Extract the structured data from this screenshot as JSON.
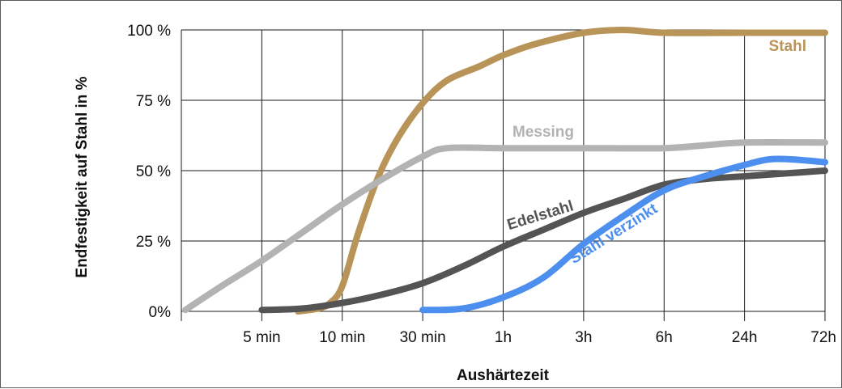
{
  "chart_data": {
    "type": "line",
    "xlabel": "Aushärtezeit",
    "ylabel": "Endfestigkeit auf Stahl in %",
    "ylim": [
      0,
      100
    ],
    "grid": true,
    "categories": [
      "",
      "5 min",
      "10 min",
      "30 min",
      "1h",
      "3h",
      "6h",
      "24h",
      "72h"
    ],
    "y_ticks": [
      {
        "value": 0,
        "label": "0%"
      },
      {
        "value": 25,
        "label": "25 %"
      },
      {
        "value": 50,
        "label": "50 %"
      },
      {
        "value": 75,
        "label": "75 %"
      },
      {
        "value": 100,
        "label": "100 %"
      }
    ],
    "series": [
      {
        "name": "Stahl",
        "color": "#b89459",
        "points": [
          [
            1.45,
            0
          ],
          [
            1.7,
            1
          ],
          [
            1.85,
            3
          ],
          [
            2.0,
            9
          ],
          [
            2.2,
            28
          ],
          [
            2.45,
            48
          ],
          [
            2.7,
            62
          ],
          [
            3.0,
            74
          ],
          [
            3.3,
            82
          ],
          [
            3.7,
            87
          ],
          [
            4.0,
            91
          ],
          [
            4.4,
            95
          ],
          [
            5.0,
            99
          ],
          [
            5.5,
            100
          ],
          [
            6.0,
            99
          ],
          [
            7.0,
            99
          ],
          [
            8.0,
            99
          ]
        ]
      },
      {
        "name": "Messing",
        "color": "#b3b3b3",
        "points": [
          [
            0.05,
            0.5
          ],
          [
            0.5,
            9
          ],
          [
            1.0,
            18
          ],
          [
            1.5,
            28
          ],
          [
            2.0,
            38
          ],
          [
            2.5,
            47
          ],
          [
            3.0,
            55
          ],
          [
            3.3,
            58
          ],
          [
            4.0,
            58
          ],
          [
            5.0,
            58
          ],
          [
            6.0,
            58
          ],
          [
            6.5,
            59
          ],
          [
            7.0,
            60
          ],
          [
            8.0,
            60
          ]
        ]
      },
      {
        "name": "Edelstahl",
        "color": "#545454",
        "points": [
          [
            1.0,
            0.5
          ],
          [
            1.5,
            1
          ],
          [
            2.0,
            3
          ],
          [
            2.5,
            6
          ],
          [
            3.0,
            10
          ],
          [
            3.5,
            16
          ],
          [
            4.0,
            23
          ],
          [
            4.5,
            29
          ],
          [
            5.0,
            35
          ],
          [
            5.5,
            40
          ],
          [
            6.0,
            45
          ],
          [
            6.5,
            47
          ],
          [
            7.0,
            48
          ],
          [
            7.5,
            49
          ],
          [
            8.0,
            50
          ]
        ]
      },
      {
        "name": "Stahl verzinkt",
        "color": "#4d8fef",
        "points": [
          [
            3.0,
            0.5
          ],
          [
            3.5,
            1
          ],
          [
            4.0,
            5
          ],
          [
            4.5,
            12
          ],
          [
            5.0,
            24
          ],
          [
            5.5,
            34
          ],
          [
            6.0,
            43
          ],
          [
            6.5,
            48
          ],
          [
            7.0,
            52
          ],
          [
            7.3,
            54
          ],
          [
            7.6,
            54
          ],
          [
            8.0,
            53
          ]
        ]
      }
    ]
  }
}
